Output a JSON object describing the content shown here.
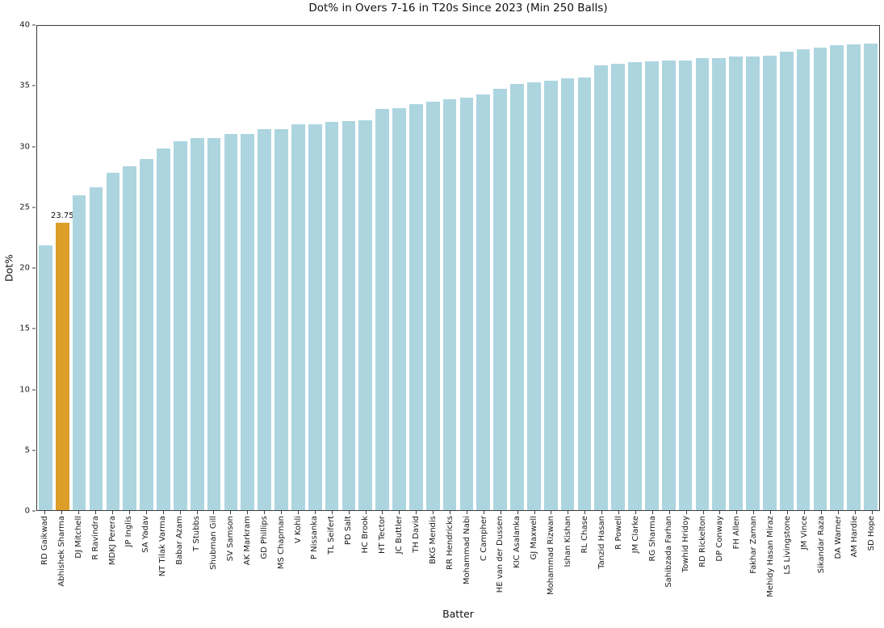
{
  "chart_data": {
    "type": "bar",
    "title": "Dot% in Overs 7-16 in T20s Since 2023 (Min 250 Balls)",
    "xlabel": "Batter",
    "ylabel": "Dot%",
    "ylim": [
      0,
      40
    ],
    "yticks": [
      0,
      5,
      10,
      15,
      20,
      25,
      30,
      35,
      40
    ],
    "grid": false,
    "legend": false,
    "bar_color": "#ADD5E0",
    "highlight": {
      "category": "Abhishek Sharma",
      "index": 1,
      "color": "#DD9D29",
      "value_label": "23.75"
    },
    "categories": [
      "RD Gaikwad",
      "Abhishek Sharma",
      "DJ Mitchell",
      "R Ravindra",
      "MDKJ Perera",
      "JP Inglis",
      "SA Yadav",
      "NT Tilak Varma",
      "Babar Azam",
      "T Stubbs",
      "Shubman Gill",
      "SV Samson",
      "AK Markram",
      "GD Phillips",
      "MS Chapman",
      "V Kohli",
      "P Nissanka",
      "TL Seifert",
      "PD Salt",
      "HC Brook",
      "HT Tector",
      "JC Buttler",
      "TH David",
      "BKG Mendis",
      "RR Hendricks",
      "Mohammad Nabi",
      "C Campher",
      "HE van der Dussen",
      "KIC Asalanka",
      "GJ Maxwell",
      "Mohammad Rizwan",
      "Ishan Kishan",
      "RL Chase",
      "Tanzid Hasan",
      "R Powell",
      "JM Clarke",
      "RG Sharma",
      "Sahibzada Farhan",
      "Towhid Hridoy",
      "RD Rickelton",
      "DP Conway",
      "FH Allen",
      "Fakhar Zaman",
      "Mehidy Hasan Miraz",
      "LS Livingstone",
      "JM Vince",
      "Sikandar Raza",
      "DA Warner",
      "AM Hardie",
      "SD Hope"
    ],
    "values": [
      21.9,
      23.75,
      26.0,
      26.65,
      27.9,
      28.4,
      29.0,
      29.85,
      30.5,
      30.75,
      30.75,
      31.1,
      31.1,
      31.45,
      31.5,
      31.85,
      31.85,
      32.1,
      32.15,
      32.2,
      33.15,
      33.2,
      33.55,
      33.75,
      33.95,
      34.05,
      34.35,
      34.8,
      35.2,
      35.35,
      35.45,
      35.7,
      35.75,
      36.75,
      36.85,
      37.0,
      37.1,
      37.15,
      37.15,
      37.35,
      37.35,
      37.45,
      37.5,
      37.55,
      37.9,
      38.05,
      38.2,
      38.4,
      38.45,
      38.55
    ]
  }
}
